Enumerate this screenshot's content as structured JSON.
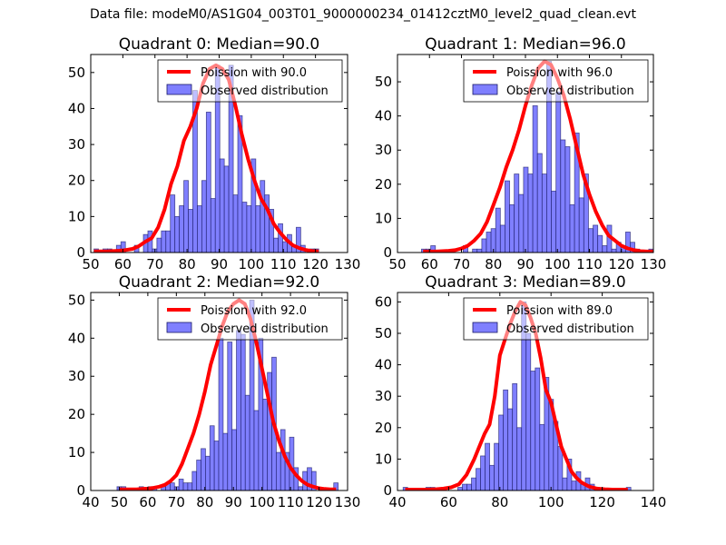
{
  "figure": {
    "suptitle": "Data file: modeM0/AS1G04_003T01_9000000234_01412cztM0_level2_quad_clean.evt"
  },
  "colors": {
    "hist_fill": "#7f7fff",
    "hist_edge": "#1a1a66",
    "poisson_line": "#ff0000"
  },
  "chart_data": [
    {
      "type": "bar",
      "title": "Quadrant 0: Median=90.0",
      "xlabel": "",
      "ylabel": "",
      "xlim": [
        50,
        130
      ],
      "ylim": [
        0,
        55
      ],
      "xticks": [
        50,
        60,
        70,
        80,
        90,
        100,
        110,
        120,
        130
      ],
      "yticks": [
        0,
        10,
        20,
        30,
        40,
        50
      ],
      "legend": {
        "placement": "top-right",
        "entries": [
          "Poission with 90.0",
          "Observed distribution"
        ]
      },
      "grid": false,
      "hist": {
        "bin_start": 51,
        "bin_width": 1.4,
        "counts": [
          1,
          0,
          1,
          1,
          0,
          2,
          3,
          0,
          0,
          2,
          0,
          5,
          6,
          1,
          4,
          6,
          6,
          16,
          10,
          13,
          20,
          12,
          45,
          13,
          20,
          39,
          15,
          52,
          26,
          24,
          52,
          16,
          38,
          14,
          13,
          26,
          13,
          20,
          16,
          12,
          4,
          8,
          3,
          5,
          2,
          7,
          2,
          0,
          1,
          1
        ]
      },
      "poisson": {
        "mean": 90.0,
        "x": [
          51,
          53,
          55,
          57,
          59,
          61,
          63,
          65,
          67,
          69,
          71,
          73,
          75,
          77,
          79,
          81,
          83,
          85,
          87,
          89,
          91,
          93,
          95,
          97,
          99,
          101,
          103,
          105,
          107,
          109,
          111,
          113,
          115,
          117,
          119,
          121
        ],
        "y": [
          0.3,
          0.3,
          0.3,
          0.4,
          0.5,
          0.7,
          1,
          1.8,
          3,
          4,
          7,
          12,
          19,
          24,
          31,
          35,
          40,
          47,
          51,
          52,
          51,
          48,
          41,
          33,
          26,
          20,
          15,
          12,
          8,
          5.5,
          3.5,
          2,
          1.2,
          0.7,
          0.4,
          0.3
        ]
      }
    },
    {
      "type": "bar",
      "title": "Quadrant 1: Median=96.0",
      "xlabel": "",
      "ylabel": "",
      "xlim": [
        50,
        130
      ],
      "ylim": [
        0,
        58
      ],
      "xticks": [
        50,
        60,
        70,
        80,
        90,
        100,
        110,
        120,
        130
      ],
      "yticks": [
        0,
        10,
        20,
        30,
        40,
        50
      ],
      "legend": {
        "placement": "top-right",
        "entries": [
          "Poission with 96.0",
          "Observed distribution"
        ]
      },
      "grid": false,
      "hist": {
        "bin_start": 57.5,
        "bin_width": 1.45,
        "counts": [
          1,
          1,
          2,
          0,
          0,
          0,
          0,
          0,
          0,
          2,
          0,
          1,
          1,
          4,
          6,
          7,
          13,
          8,
          21,
          14,
          23,
          17,
          25,
          23,
          43,
          29,
          23,
          56,
          18,
          47,
          33,
          31,
          14,
          35,
          16,
          23,
          7,
          8,
          5,
          2,
          8,
          1,
          3,
          2,
          6,
          3,
          1,
          0,
          0,
          1
        ]
      },
      "poisson": {
        "mean": 96.0,
        "x": [
          58,
          60,
          62,
          64,
          66,
          68,
          70,
          72,
          74,
          76,
          78,
          80,
          82,
          84,
          86,
          88,
          90,
          92,
          94,
          96,
          98,
          100,
          102,
          104,
          106,
          108,
          110,
          112,
          114,
          116,
          118,
          120,
          122,
          124,
          126,
          128,
          130
        ],
        "y": [
          0.3,
          0.3,
          0.3,
          0.4,
          0.5,
          0.7,
          1.2,
          2,
          3.5,
          5.5,
          9,
          14,
          19,
          25,
          30,
          36,
          43,
          49,
          54,
          56,
          55,
          51,
          46,
          39,
          31,
          23,
          17,
          12,
          8,
          5,
          3.5,
          2,
          1.2,
          0.7,
          0.4,
          0.3,
          0.3
        ]
      }
    },
    {
      "type": "bar",
      "title": "Quadrant 2: Median=92.0",
      "xlabel": "",
      "ylabel": "",
      "xlim": [
        40,
        130
      ],
      "ylim": [
        0,
        52
      ],
      "xticks": [
        40,
        50,
        60,
        70,
        80,
        90,
        100,
        110,
        120,
        130
      ],
      "yticks": [
        0,
        10,
        20,
        30,
        40,
        50
      ],
      "legend": {
        "placement": "top-right",
        "entries": [
          "Poission with 92.0",
          "Observed distribution"
        ]
      },
      "grid": false,
      "hist": {
        "bin_start": 49.2,
        "bin_width": 1.55,
        "counts": [
          1,
          1,
          0,
          0,
          0,
          1,
          0,
          1,
          1,
          0,
          1,
          2,
          2,
          1,
          3,
          2,
          2,
          5,
          8,
          11,
          9,
          17,
          13,
          40,
          15,
          39,
          16,
          42,
          41,
          25,
          50,
          21,
          40,
          24,
          31,
          35,
          10,
          16,
          10,
          14,
          6,
          1,
          5,
          6,
          5,
          0,
          0,
          0,
          0,
          2
        ]
      },
      "poisson": {
        "mean": 92.0,
        "x": [
          50,
          52,
          54,
          56,
          58,
          60,
          62,
          64,
          66,
          68,
          70,
          72,
          74,
          76,
          78,
          80,
          82,
          84,
          86,
          88,
          90,
          92,
          94,
          96,
          98,
          100,
          102,
          104,
          106,
          108,
          110,
          112,
          114,
          116,
          118,
          120,
          122,
          124,
          126
        ],
        "y": [
          0.3,
          0.3,
          0.3,
          0.3,
          0.4,
          0.5,
          0.7,
          1,
          1.5,
          2.5,
          4,
          7,
          11,
          15,
          20,
          26,
          33,
          38,
          43,
          47,
          49,
          50,
          49,
          45,
          39,
          32,
          25,
          18,
          13,
          9,
          6,
          4,
          2.5,
          1.5,
          1,
          0.6,
          0.4,
          0.3,
          0.3
        ]
      }
    },
    {
      "type": "bar",
      "title": "Quadrant 3: Median=89.0",
      "xlabel": "",
      "ylabel": "",
      "xlim": [
        40,
        140
      ],
      "ylim": [
        0,
        63
      ],
      "xticks": [
        40,
        60,
        80,
        100,
        120,
        140
      ],
      "yticks": [
        0,
        10,
        20,
        30,
        40,
        50,
        60
      ],
      "legend": {
        "placement": "top-right",
        "entries": [
          "Poission with 89.0",
          "Observed distribution"
        ]
      },
      "grid": false,
      "hist": {
        "bin_start": 42.2,
        "bin_width": 1.78,
        "counts": [
          1,
          0,
          0,
          0,
          0,
          1,
          1,
          0,
          0,
          0,
          0,
          0,
          1,
          2,
          2,
          4,
          7,
          11,
          15,
          8,
          15,
          24,
          32,
          26,
          34,
          20,
          60,
          50,
          38,
          39,
          21,
          36,
          29,
          22,
          14,
          4,
          10,
          3,
          6,
          2,
          4,
          2,
          1,
          0,
          0,
          0,
          0,
          0,
          0,
          1
        ]
      },
      "poisson": {
        "mean": 89.0,
        "x": [
          43,
          46,
          49,
          52,
          55,
          58,
          61,
          64,
          67,
          70,
          72,
          74,
          76,
          78,
          80,
          82,
          84,
          86,
          88,
          90,
          92,
          94,
          96,
          98,
          100,
          102,
          104,
          106,
          108,
          110,
          112,
          115,
          118,
          121,
          124,
          127,
          130
        ],
        "y": [
          0.3,
          0.3,
          0.3,
          0.3,
          0.4,
          0.6,
          1,
          2,
          5,
          10,
          14,
          18,
          21,
          30,
          43,
          48,
          53,
          57,
          60,
          59,
          55,
          50,
          42,
          32,
          28,
          21,
          14,
          10,
          6,
          4,
          2.5,
          1.2,
          0.6,
          0.4,
          0.3,
          0.3,
          0.3
        ]
      }
    }
  ]
}
